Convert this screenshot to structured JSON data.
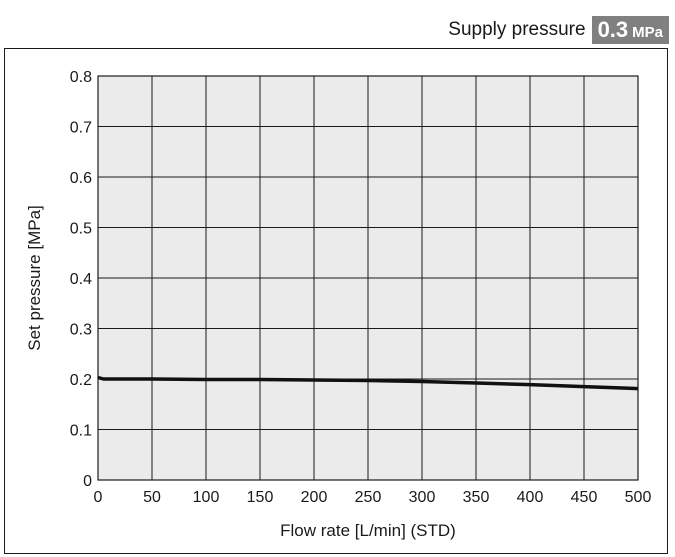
{
  "header": {
    "supply_label": "Supply pressure",
    "supply_value": "0.3",
    "supply_unit": "MPa"
  },
  "colors": {
    "plot_background": "#ebebeb",
    "grid": "#1a1a1a",
    "line": "#111111",
    "badge": "#808080"
  },
  "chart_data": {
    "type": "line",
    "title": "",
    "xlabel": "Flow rate [L/min] (STD)",
    "ylabel": "Set pressure [MPa]",
    "xlim": [
      0,
      500
    ],
    "ylim": [
      0,
      0.8
    ],
    "xticks": [
      0,
      50,
      100,
      150,
      200,
      250,
      300,
      350,
      400,
      450,
      500
    ],
    "yticks": [
      0,
      0.1,
      0.2,
      0.3,
      0.4,
      0.5,
      0.6,
      0.7,
      0.8
    ],
    "xtick_labels": [
      "0",
      "50",
      "100",
      "150",
      "200",
      "250",
      "300",
      "350",
      "400",
      "450",
      "500"
    ],
    "ytick_labels": [
      "0",
      "0.1",
      "0.2",
      "0.3",
      "0.4",
      "0.5",
      "0.6",
      "0.7",
      "0.8"
    ],
    "grid": true,
    "legend": false,
    "series": [
      {
        "x": [
          0,
          5,
          50,
          100,
          150,
          200,
          250,
          300,
          350,
          400,
          450,
          500
        ],
        "y": [
          0.203,
          0.2,
          0.2,
          0.199,
          0.199,
          0.198,
          0.197,
          0.195,
          0.192,
          0.189,
          0.185,
          0.181
        ]
      }
    ]
  }
}
